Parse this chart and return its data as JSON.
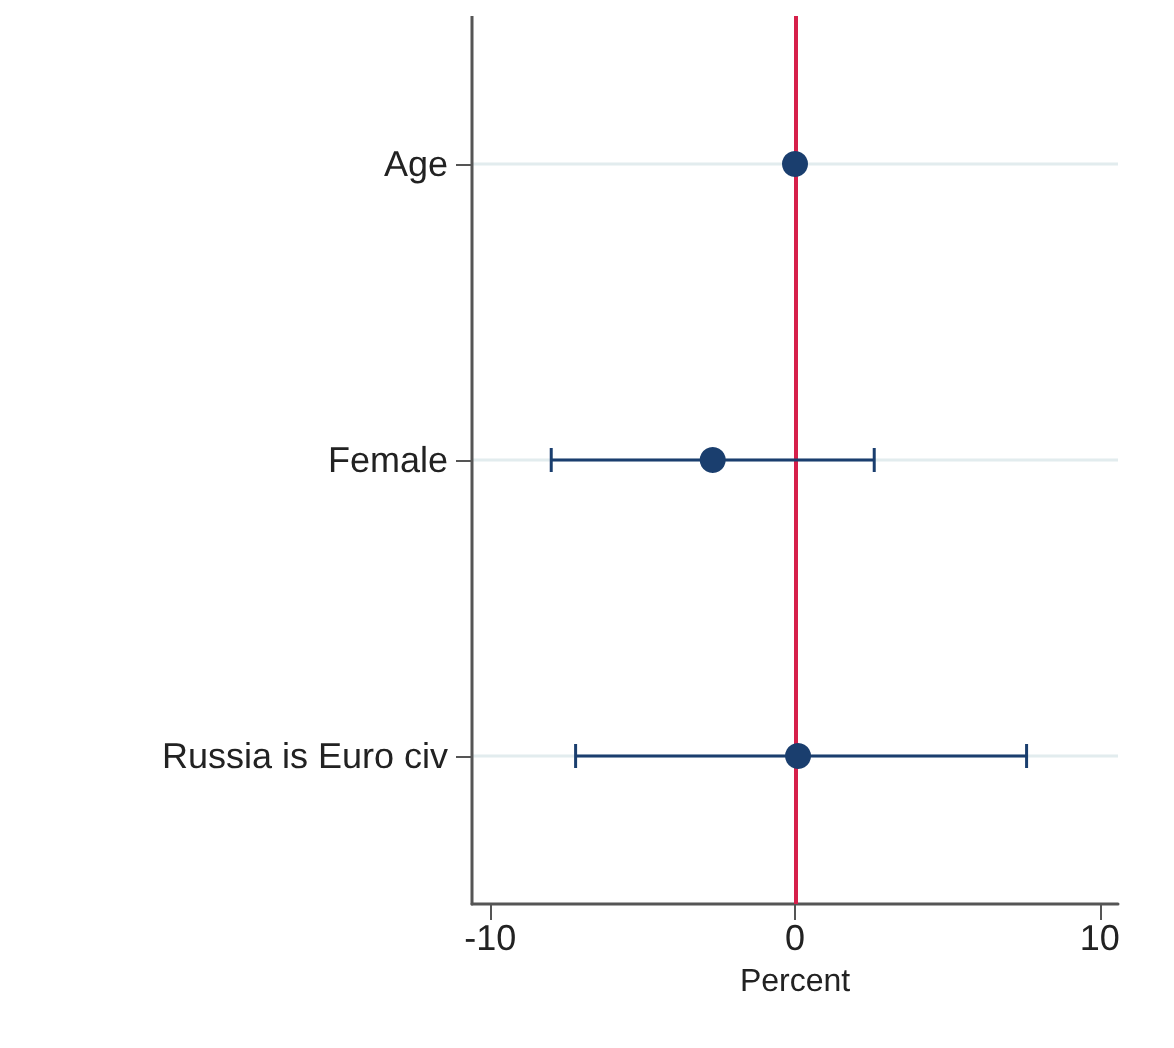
{
  "chart_data": {
    "type": "scatter",
    "orientation": "horizontal",
    "xlabel": "Percent",
    "categories": [
      "Age",
      "Female",
      "Russia is Euro civ"
    ],
    "values": [
      0,
      -2.7,
      0.1
    ],
    "errors": [
      null,
      [
        -8,
        2.6
      ],
      [
        -7.2,
        7.6
      ]
    ],
    "color": "#1a3e6e",
    "xlim": [
      -10.6,
      10.6
    ],
    "xticks": [
      -10,
      0,
      10
    ],
    "ref_lines": [
      {
        "axis": "x",
        "value": 0,
        "color": "#d6204a"
      }
    ],
    "grid": "y",
    "marker": "circle"
  }
}
